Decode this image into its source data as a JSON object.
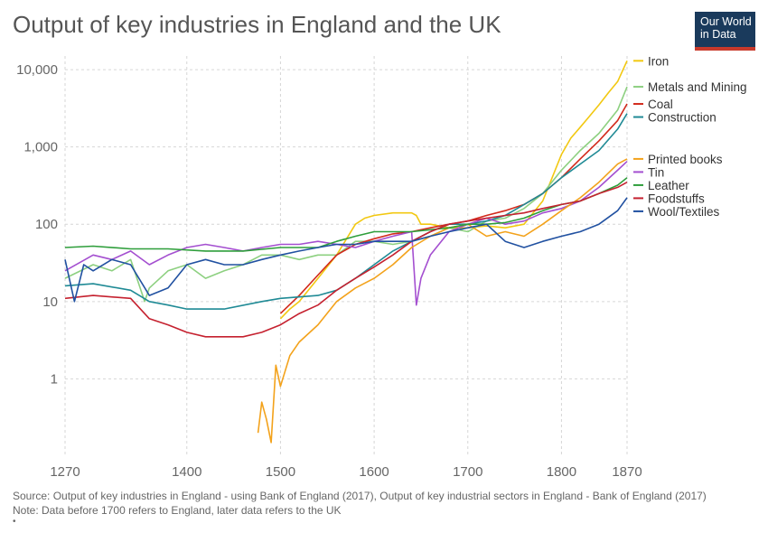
{
  "title": "Output of key industries in England and the UK",
  "logo": {
    "line1": "Our World",
    "line2": "in Data",
    "bg": "#1a3a5c",
    "accent": "#c8392b"
  },
  "footer": {
    "source": "Source: Output of key industries in England - using Bank of England (2017), Output of key industrial sectors in England - Bank of England (2017)",
    "note": "Note: Data before 1700 refers to England, later data refers to the UK",
    "bullet": "•"
  },
  "chart_data": {
    "type": "line",
    "title": "Output of key industries in England and the UK",
    "xlabel": "",
    "ylabel": "",
    "y_scale": "log",
    "xlim": [
      1270,
      1870
    ],
    "ylim": [
      0.1,
      15000
    ],
    "x_ticks": [
      1270,
      1400,
      1500,
      1600,
      1700,
      1800,
      1870
    ],
    "x_tick_labels": [
      "1270",
      "1400",
      "1500",
      "1600",
      "1700",
      "1800",
      "1870"
    ],
    "y_ticks": [
      1,
      10,
      100,
      1000,
      10000
    ],
    "y_tick_labels": [
      "1",
      "10",
      "100",
      "1,000",
      "10,000"
    ],
    "grid": true,
    "legend": "right",
    "series": [
      {
        "name": "Iron",
        "color": "#f2c811",
        "x": [
          1500,
          1510,
          1520,
          1540,
          1560,
          1580,
          1590,
          1600,
          1620,
          1640,
          1645,
          1650,
          1660,
          1680,
          1700,
          1720,
          1740,
          1760,
          1780,
          1790,
          1800,
          1810,
          1820,
          1830,
          1840,
          1850,
          1860,
          1870
        ],
        "y": [
          6,
          8,
          10,
          20,
          40,
          100,
          120,
          130,
          140,
          140,
          130,
          100,
          100,
          90,
          90,
          95,
          90,
          100,
          200,
          400,
          800,
          1300,
          1800,
          2500,
          3500,
          5000,
          7000,
          13000
        ]
      },
      {
        "name": "Metals and Mining",
        "color": "#8dd080",
        "x": [
          1270,
          1300,
          1320,
          1340,
          1355,
          1360,
          1380,
          1400,
          1420,
          1440,
          1460,
          1480,
          1500,
          1520,
          1540,
          1560,
          1580,
          1600,
          1620,
          1640,
          1660,
          1680,
          1700,
          1720,
          1740,
          1760,
          1780,
          1800,
          1820,
          1840,
          1860,
          1870
        ],
        "y": [
          20,
          30,
          25,
          35,
          10,
          15,
          25,
          30,
          20,
          25,
          30,
          40,
          40,
          35,
          40,
          40,
          60,
          60,
          55,
          60,
          70,
          90,
          80,
          110,
          120,
          160,
          250,
          500,
          900,
          1500,
          3000,
          6000
        ]
      },
      {
        "name": "Coal",
        "color": "#d2291b",
        "x": [
          1500,
          1520,
          1540,
          1560,
          1580,
          1600,
          1620,
          1640,
          1660,
          1680,
          1700,
          1720,
          1740,
          1760,
          1780,
          1800,
          1820,
          1840,
          1860,
          1870
        ],
        "y": [
          7,
          12,
          22,
          40,
          55,
          65,
          75,
          80,
          90,
          100,
          110,
          130,
          150,
          180,
          250,
          400,
          700,
          1200,
          2200,
          3600
        ]
      },
      {
        "name": "Construction",
        "color": "#1f8a95",
        "x": [
          1270,
          1300,
          1340,
          1360,
          1380,
          1400,
          1440,
          1480,
          1500,
          1540,
          1560,
          1580,
          1600,
          1620,
          1640,
          1660,
          1680,
          1700,
          1720,
          1740,
          1760,
          1780,
          1800,
          1820,
          1840,
          1860,
          1870
        ],
        "y": [
          16,
          17,
          14,
          10,
          9,
          8,
          8,
          10,
          11,
          12,
          14,
          20,
          30,
          45,
          60,
          80,
          100,
          100,
          110,
          130,
          180,
          250,
          400,
          600,
          900,
          1700,
          2700
        ]
      },
      {
        "name": "Tin",
        "color": "#a44fd0",
        "x": [
          1270,
          1300,
          1320,
          1340,
          1360,
          1380,
          1400,
          1420,
          1440,
          1460,
          1480,
          1500,
          1520,
          1540,
          1560,
          1580,
          1600,
          1620,
          1640,
          1645,
          1650,
          1660,
          1680,
          1700,
          1720,
          1740,
          1760,
          1780,
          1800,
          1820,
          1840,
          1860,
          1870
        ],
        "y": [
          25,
          40,
          35,
          45,
          30,
          40,
          50,
          55,
          50,
          45,
          50,
          55,
          55,
          60,
          55,
          50,
          60,
          70,
          80,
          9,
          20,
          40,
          80,
          100,
          120,
          100,
          110,
          140,
          160,
          200,
          300,
          500,
          650
        ]
      },
      {
        "name": "Printed books",
        "color": "#f3a21b",
        "x": [
          1476,
          1480,
          1485,
          1490,
          1495,
          1500,
          1510,
          1520,
          1540,
          1560,
          1580,
          1600,
          1620,
          1640,
          1660,
          1680,
          1700,
          1720,
          1740,
          1760,
          1780,
          1800,
          1820,
          1840,
          1860,
          1870
        ],
        "y": [
          0.2,
          0.5,
          0.3,
          0.15,
          1.5,
          0.8,
          2,
          3,
          5,
          10,
          15,
          20,
          30,
          50,
          70,
          90,
          100,
          70,
          80,
          70,
          100,
          150,
          220,
          350,
          600,
          700
        ]
      },
      {
        "name": "Leather",
        "color": "#2e9e3b",
        "x": [
          1270,
          1300,
          1340,
          1380,
          1420,
          1460,
          1500,
          1540,
          1560,
          1580,
          1600,
          1620,
          1640,
          1660,
          1680,
          1700,
          1720,
          1740,
          1760,
          1780,
          1800,
          1820,
          1840,
          1860,
          1870
        ],
        "y": [
          50,
          52,
          48,
          48,
          45,
          45,
          50,
          50,
          60,
          70,
          80,
          80,
          80,
          85,
          90,
          100,
          100,
          105,
          120,
          150,
          180,
          200,
          250,
          320,
          400
        ]
      },
      {
        "name": "Foodstuffs",
        "color": "#c5212f",
        "x": [
          1270,
          1300,
          1340,
          1360,
          1380,
          1400,
          1420,
          1440,
          1460,
          1480,
          1500,
          1520,
          1540,
          1560,
          1580,
          1600,
          1620,
          1640,
          1660,
          1680,
          1700,
          1720,
          1740,
          1760,
          1780,
          1800,
          1820,
          1840,
          1860,
          1870
        ],
        "y": [
          11,
          12,
          11,
          6,
          5,
          4,
          3.5,
          3.5,
          3.5,
          4,
          5,
          7,
          9,
          14,
          20,
          28,
          40,
          60,
          80,
          100,
          110,
          120,
          130,
          140,
          160,
          180,
          200,
          250,
          300,
          350
        ]
      },
      {
        "name": "Wool/Textiles",
        "color": "#2151a1",
        "x": [
          1270,
          1280,
          1290,
          1300,
          1320,
          1340,
          1360,
          1380,
          1400,
          1420,
          1440,
          1460,
          1480,
          1500,
          1520,
          1540,
          1560,
          1580,
          1600,
          1620,
          1640,
          1660,
          1680,
          1700,
          1720,
          1740,
          1760,
          1780,
          1800,
          1820,
          1840,
          1860,
          1870
        ],
        "y": [
          35,
          10,
          30,
          25,
          35,
          30,
          12,
          15,
          30,
          35,
          30,
          30,
          35,
          40,
          45,
          50,
          55,
          55,
          60,
          60,
          60,
          70,
          80,
          90,
          100,
          60,
          50,
          60,
          70,
          80,
          100,
          150,
          220
        ]
      }
    ]
  }
}
